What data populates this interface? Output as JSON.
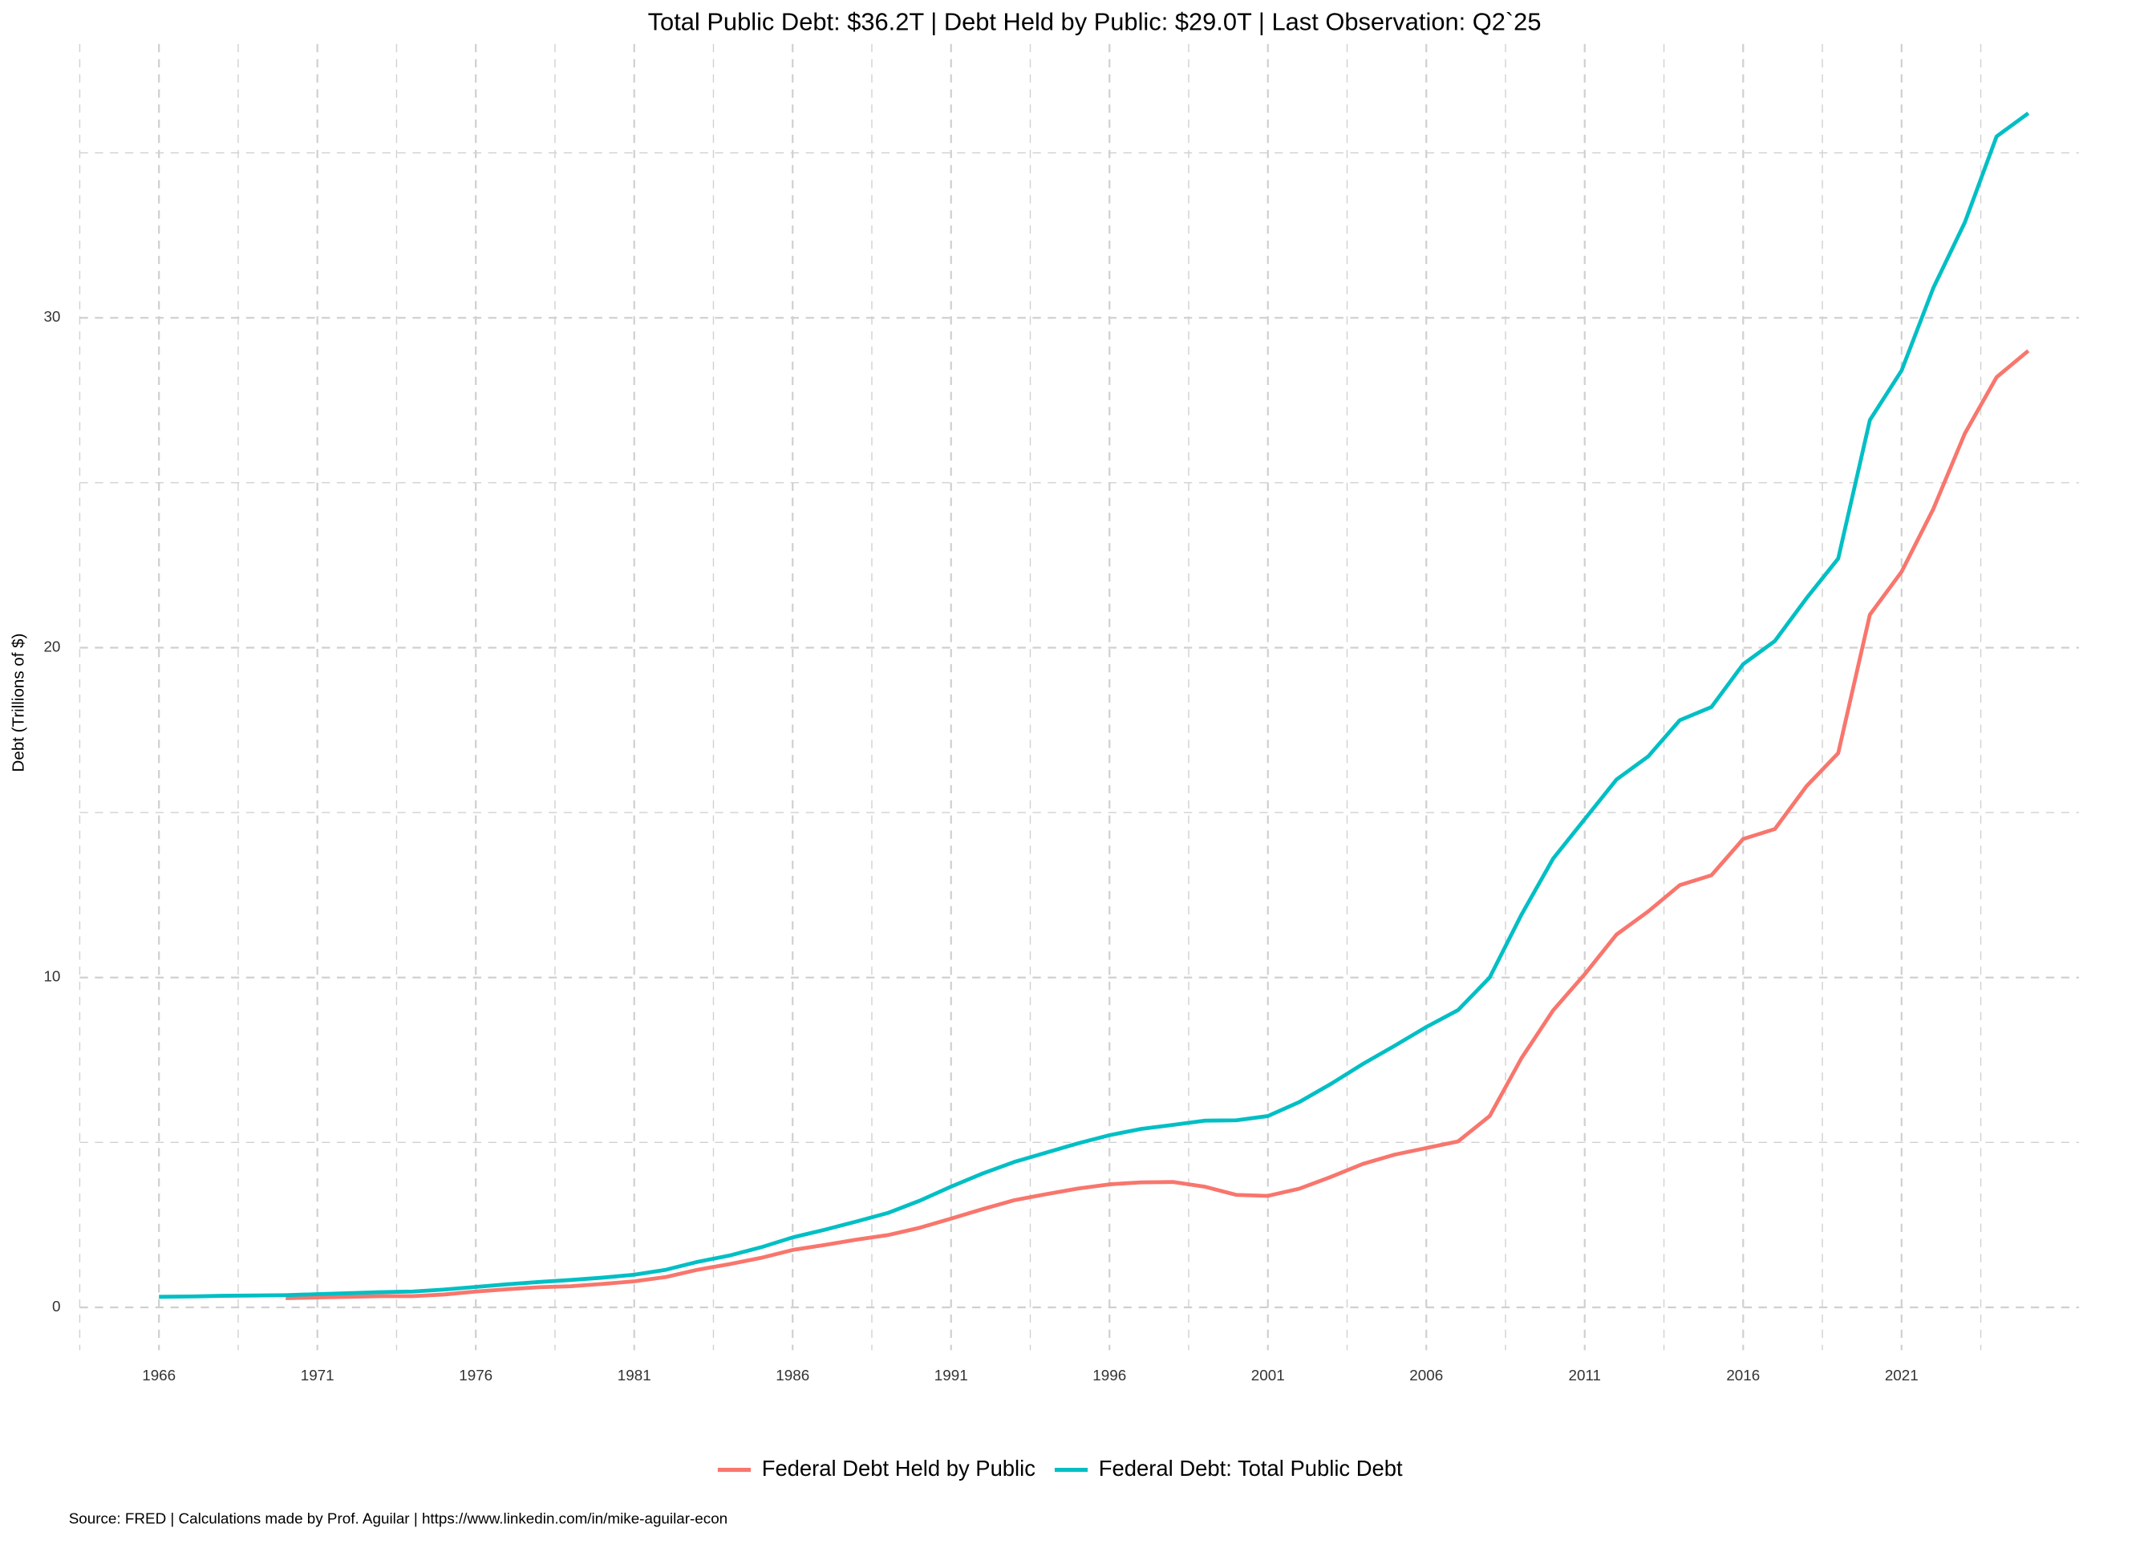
{
  "chart_data": {
    "type": "line",
    "title": "Total Public Debt: $36.2T | Debt Held by Public: $29.0T | Last Observation: Q2`25",
    "y_label": "Debt (Trillions of $)",
    "caption": "Source: FRED | Calculations made by Prof. Aguilar | https://www.linkedin.com/in/mike-aguilar-econ",
    "x": [
      1966,
      1967,
      1968,
      1969,
      1970,
      1971,
      1972,
      1973,
      1974,
      1975,
      1976,
      1977,
      1978,
      1979,
      1980,
      1981,
      1982,
      1983,
      1984,
      1985,
      1986,
      1987,
      1988,
      1989,
      1990,
      1991,
      1992,
      1993,
      1994,
      1995,
      1996,
      1997,
      1998,
      1999,
      2000,
      2001,
      2002,
      2003,
      2004,
      2005,
      2006,
      2007,
      2008,
      2009,
      2010,
      2011,
      2012,
      2013,
      2014,
      2015,
      2016,
      2017,
      2018,
      2019,
      2020,
      2021,
      2022,
      2023,
      2024,
      2025
    ],
    "series": [
      {
        "name": "Federal Debt Held by Public",
        "color": "#f8766d",
        "values": [
          null,
          null,
          null,
          null,
          0.28,
          0.3,
          0.32,
          0.34,
          0.34,
          0.39,
          0.48,
          0.55,
          0.61,
          0.64,
          0.71,
          0.79,
          0.92,
          1.14,
          1.31,
          1.5,
          1.74,
          1.89,
          2.05,
          2.19,
          2.41,
          2.69,
          2.98,
          3.25,
          3.43,
          3.6,
          3.73,
          3.79,
          3.8,
          3.66,
          3.41,
          3.38,
          3.6,
          3.96,
          4.35,
          4.63,
          4.83,
          5.03,
          5.8,
          7.55,
          9.0,
          10.1,
          11.3,
          12.0,
          12.8,
          13.1,
          14.2,
          14.5,
          15.8,
          16.8,
          21.0,
          22.3,
          24.2,
          26.5,
          28.2,
          29.0
        ]
      },
      {
        "name": "Federal Debt: Total Public Debt",
        "color": "#00bfc4",
        "values": [
          0.32,
          0.33,
          0.35,
          0.36,
          0.37,
          0.4,
          0.43,
          0.46,
          0.48,
          0.54,
          0.62,
          0.7,
          0.77,
          0.83,
          0.9,
          0.99,
          1.14,
          1.38,
          1.57,
          1.82,
          2.12,
          2.35,
          2.6,
          2.86,
          3.23,
          3.66,
          4.06,
          4.41,
          4.69,
          4.97,
          5.22,
          5.41,
          5.53,
          5.66,
          5.67,
          5.8,
          6.23,
          6.78,
          7.38,
          7.93,
          8.5,
          9.01,
          10.0,
          11.9,
          13.6,
          14.8,
          16.0,
          16.7,
          17.8,
          18.2,
          19.5,
          20.2,
          21.5,
          22.7,
          26.9,
          28.4,
          30.9,
          32.9,
          35.5,
          36.2
        ]
      }
    ],
    "xlim": [
      1963.5,
      2026.6
    ],
    "xticks": [
      1966,
      1971,
      1976,
      1981,
      1986,
      1991,
      1996,
      2001,
      2006,
      2011,
      2016,
      2021
    ],
    "ylim": [
      -1.3,
      38.3
    ],
    "yticks": [
      0,
      10,
      20,
      30
    ],
    "grid": true,
    "legend": "bottom"
  }
}
